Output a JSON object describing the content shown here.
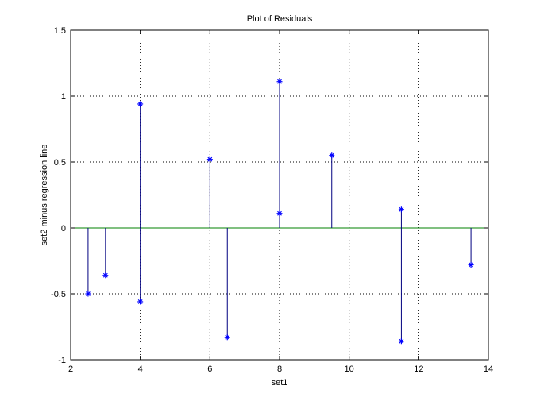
{
  "chart_data": {
    "type": "scatter",
    "title": "Plot of Residuals",
    "xlabel": "set1",
    "ylabel": "set2 minus regression line",
    "xlim": [
      2,
      14
    ],
    "ylim": [
      -1,
      1.5
    ],
    "xticks": [
      2,
      4,
      6,
      8,
      10,
      12,
      14
    ],
    "xtick_labels": [
      "2",
      "4",
      "6",
      "8",
      "10",
      "12",
      "14"
    ],
    "yticks": [
      -1,
      -0.5,
      0,
      0.5,
      1,
      1.5
    ],
    "ytick_labels": [
      "-1",
      "-0.5",
      "0",
      "0.5",
      "1",
      "1.5"
    ],
    "grid": true,
    "legend": "none",
    "marker": "*",
    "stems": true,
    "baseline": 0,
    "points": [
      {
        "x": 2.5,
        "y": -0.5
      },
      {
        "x": 3.0,
        "y": -0.36
      },
      {
        "x": 4.0,
        "y": 0.94
      },
      {
        "x": 4.0,
        "y": -0.56
      },
      {
        "x": 6.0,
        "y": 0.52
      },
      {
        "x": 6.5,
        "y": -0.83
      },
      {
        "x": 8.0,
        "y": 1.11
      },
      {
        "x": 8.0,
        "y": 0.11
      },
      {
        "x": 9.5,
        "y": 0.55
      },
      {
        "x": 11.5,
        "y": 0.14
      },
      {
        "x": 11.5,
        "y": -0.86
      },
      {
        "x": 13.5,
        "y": -0.28
      }
    ],
    "colors": {
      "marker": "#0000ff",
      "stem": "#000080",
      "baseline": "#008000",
      "grid": "#000000",
      "axes": "#000000"
    }
  }
}
